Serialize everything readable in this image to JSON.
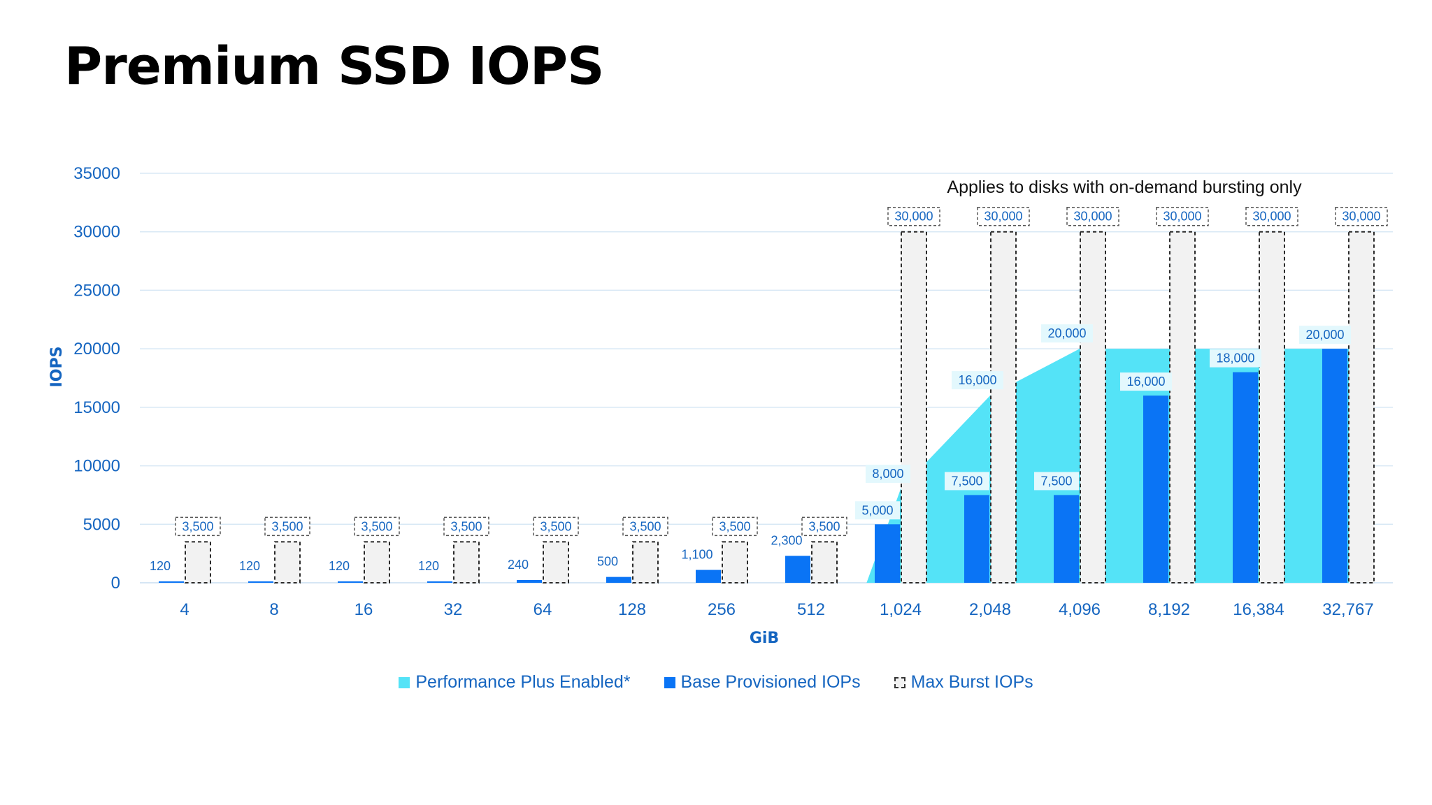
{
  "title": "Premium SSD IOPS",
  "chart_data": {
    "type": "bar",
    "title": "Premium SSD IOPS",
    "xlabel": "GiB",
    "ylabel": "IOPS",
    "ylim": [
      0,
      35000
    ],
    "yticks": [
      0,
      5000,
      10000,
      15000,
      20000,
      25000,
      30000,
      35000
    ],
    "grid": true,
    "legend_position": "bottom",
    "categories": [
      "4",
      "8",
      "16",
      "32",
      "64",
      "128",
      "256",
      "512",
      "1,024",
      "2,048",
      "4,096",
      "8,192",
      "16,384",
      "32,767"
    ],
    "series": [
      {
        "name": "Performance Plus Enabled*",
        "type": "area",
        "color": "#54e3f7",
        "values": [
          null,
          null,
          null,
          null,
          null,
          null,
          null,
          null,
          8000,
          16000,
          20000,
          20000,
          20000,
          20000
        ],
        "labels": [
          "",
          "",
          "",
          "",
          "",
          "",
          "",
          "",
          "8,000",
          "16,000",
          "20,000",
          "",
          "",
          ""
        ]
      },
      {
        "name": "Base Provisioned IOPs",
        "type": "bar",
        "color": "#0a74f5",
        "values": [
          120,
          120,
          120,
          120,
          240,
          500,
          1100,
          2300,
          5000,
          7500,
          7500,
          16000,
          18000,
          20000
        ],
        "labels": [
          "120",
          "120",
          "120",
          "120",
          "240",
          "500",
          "1,100",
          "2,300",
          "5,000",
          "7,500",
          "7,500",
          "16,000",
          "18,000",
          "20,000"
        ]
      },
      {
        "name": "Max Burst IOPs",
        "type": "bar",
        "color": "#f2f2f2",
        "values": [
          3500,
          3500,
          3500,
          3500,
          3500,
          3500,
          3500,
          3500,
          30000,
          30000,
          30000,
          30000,
          30000,
          30000
        ],
        "labels": [
          "3,500",
          "3,500",
          "3,500",
          "3,500",
          "3,500",
          "3,500",
          "3,500",
          "3,500",
          "30,000",
          "30,000",
          "30,000",
          "30,000",
          "30,000",
          "30,000"
        ]
      }
    ],
    "annotations": [
      {
        "text": "Applies to disks with on-demand bursting only"
      }
    ]
  }
}
